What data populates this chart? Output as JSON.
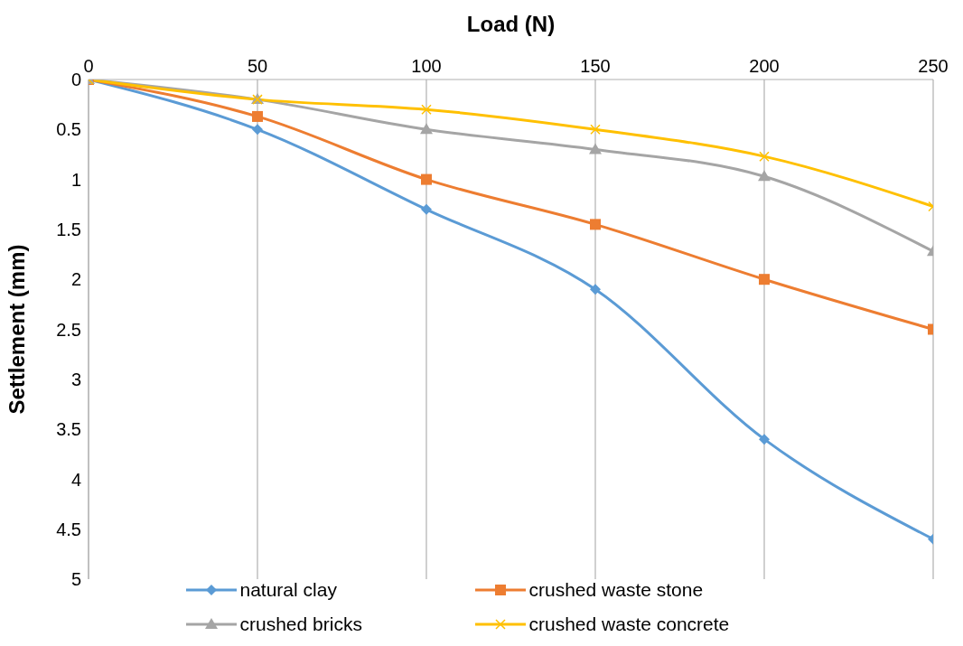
{
  "chart_data": {
    "type": "line",
    "xlabel": "Load (N)",
    "ylabel": "Settlement (mm)",
    "x": [
      0,
      50,
      100,
      150,
      200,
      250
    ],
    "xlim": [
      0,
      250
    ],
    "xticks": [
      0,
      50,
      100,
      150,
      200,
      250
    ],
    "ylim": [
      5,
      0
    ],
    "yticks": [
      0,
      0.5,
      1,
      1.5,
      2,
      2.5,
      3,
      3.5,
      4,
      4.5,
      5
    ],
    "grid": "x",
    "legend": "bottom",
    "series": [
      {
        "name": "natural clay",
        "color": "#5b9bd5",
        "marker": "diamond",
        "values": [
          0,
          0.5,
          1.3,
          2.1,
          3.6,
          4.6
        ]
      },
      {
        "name": "crushed waste stone",
        "color": "#ed7d31",
        "marker": "square",
        "values": [
          0,
          0.37,
          1.0,
          1.45,
          2.0,
          2.5
        ]
      },
      {
        "name": "crushed bricks",
        "color": "#a5a5a5",
        "marker": "triangle",
        "values": [
          0,
          0.2,
          0.5,
          0.7,
          0.97,
          1.72
        ]
      },
      {
        "name": "crushed waste concrete",
        "color": "#ffc000",
        "marker": "cross",
        "values": [
          0,
          0.2,
          0.3,
          0.5,
          0.77,
          1.27
        ]
      }
    ]
  }
}
